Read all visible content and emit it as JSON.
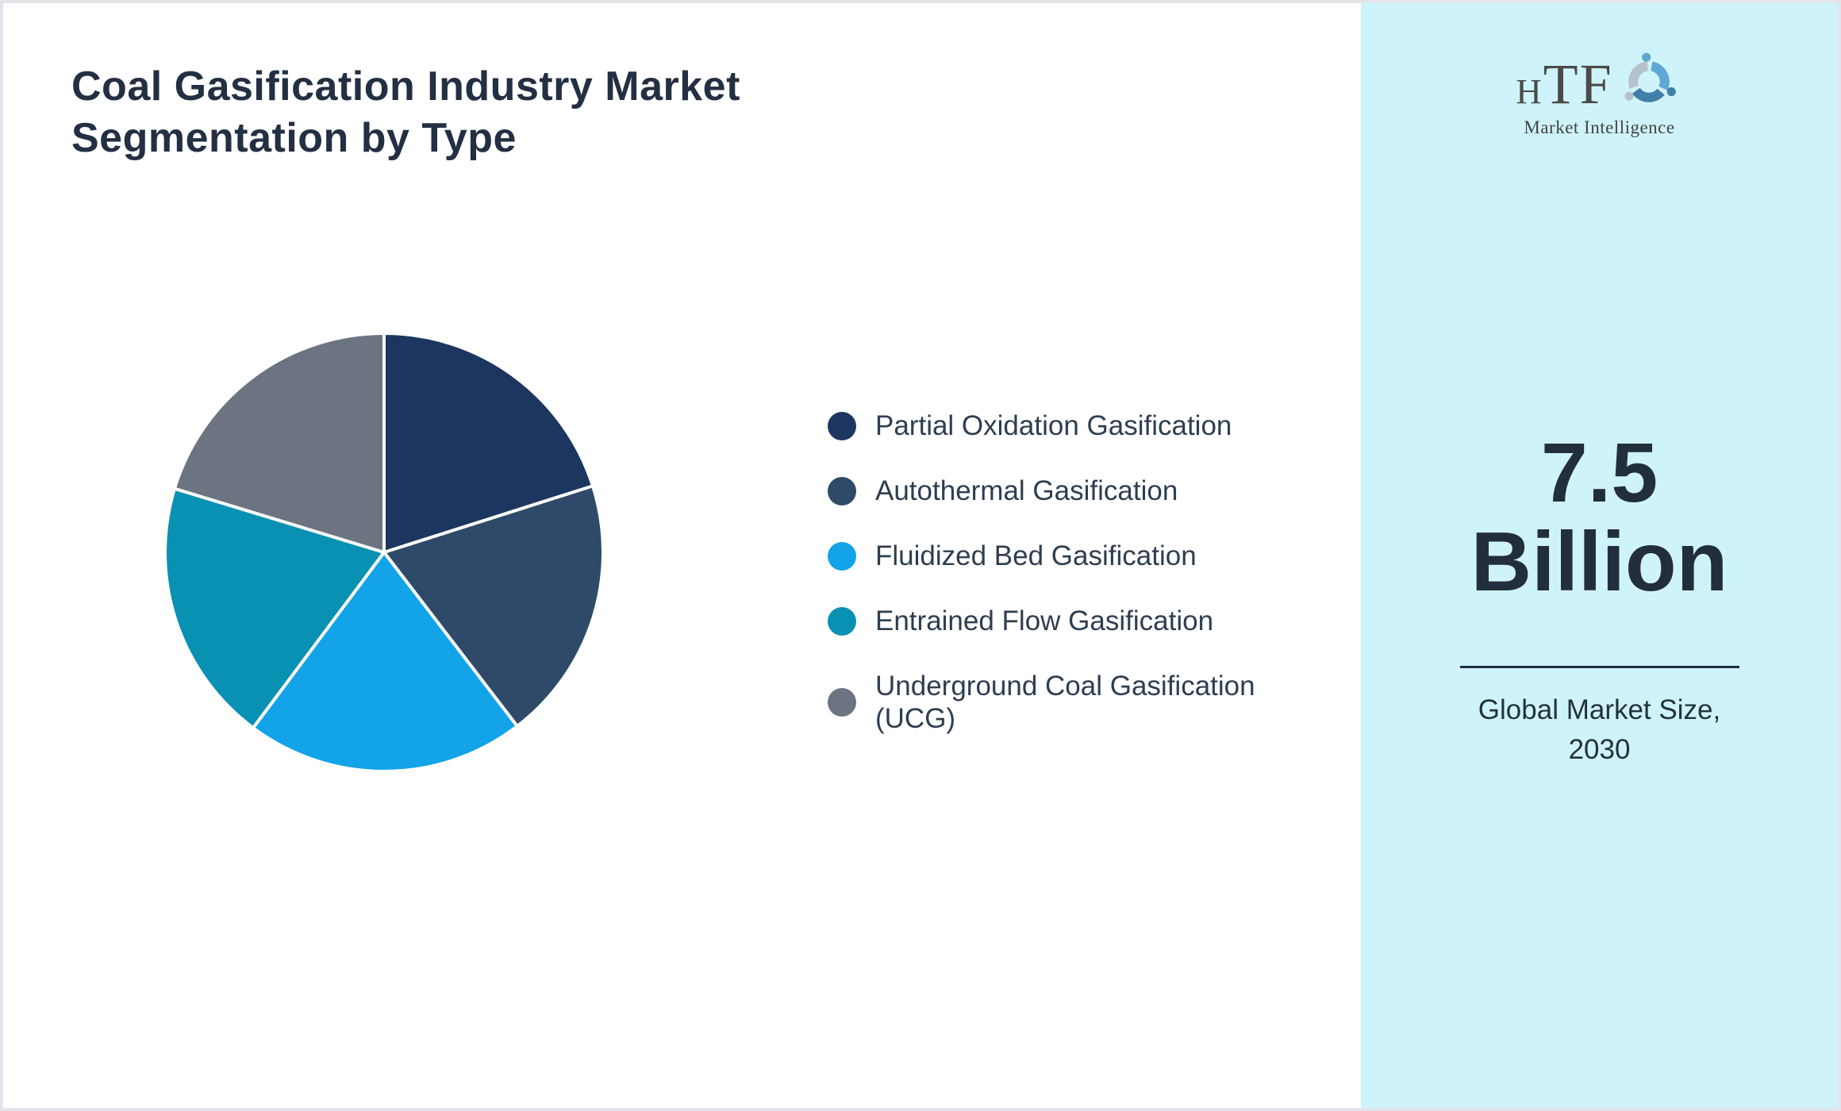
{
  "header": {
    "title_line1": "Coal Gasification Industry Market",
    "title_line2": "Segmentation by Type"
  },
  "chart_data": {
    "type": "pie",
    "title": "Coal Gasification Industry Market Segmentation by Type",
    "categories": [
      "Partial Oxidation Gasification",
      "Autothermal Gasification",
      "Fluidized Bed Gasification",
      "Entrained Flow Gasification",
      "Underground Coal Gasification (UCG)"
    ],
    "values": [
      20.1,
      19.5,
      20.6,
      19.5,
      20.3
    ],
    "values_unit": "percent",
    "colors": [
      "#1c3660",
      "#2e4a68",
      "#12a3e8",
      "#0991b3",
      "#6c7482"
    ],
    "slice_border_color": "#ffffff",
    "start_angle_deg": 0,
    "direction": "clockwise",
    "legend_position": "right",
    "data_labels_shown": false
  },
  "sidebar": {
    "background_color": "#cff3fb",
    "logo": {
      "acronym": "HTF",
      "subtitle": "Market Intelligence",
      "mark_colors": [
        "#5fa8d3",
        "#3f7fa8",
        "#b6c2cb"
      ]
    },
    "stat": {
      "value_line1": "7.5",
      "value_line2": "Billion",
      "label_line1": "Global Market Size,",
      "label_line2": "2030"
    }
  },
  "theme": {
    "page_border_color": "#e2e4e9",
    "panel_bg": "#ffffff",
    "text_dark": "#232f42"
  }
}
